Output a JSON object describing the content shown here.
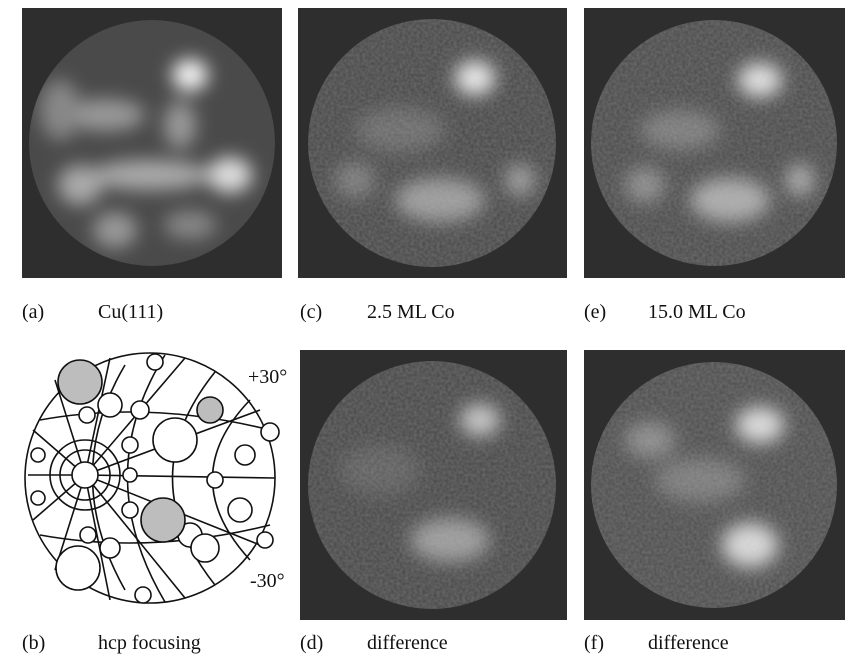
{
  "panels": [
    {
      "label": "(a)",
      "caption": "Cu(111)"
    },
    {
      "label": "(c)",
      "caption": "2.5 ML Co"
    },
    {
      "label": "(e)",
      "caption": "15.0 ML Co"
    },
    {
      "label": "(b)",
      "caption": "hcp focusing"
    },
    {
      "label": "(d)",
      "caption": "difference"
    },
    {
      "label": "(f)",
      "caption": "difference"
    }
  ],
  "diagram": {
    "angle_top": "+30°",
    "angle_bottom": "-30°"
  }
}
